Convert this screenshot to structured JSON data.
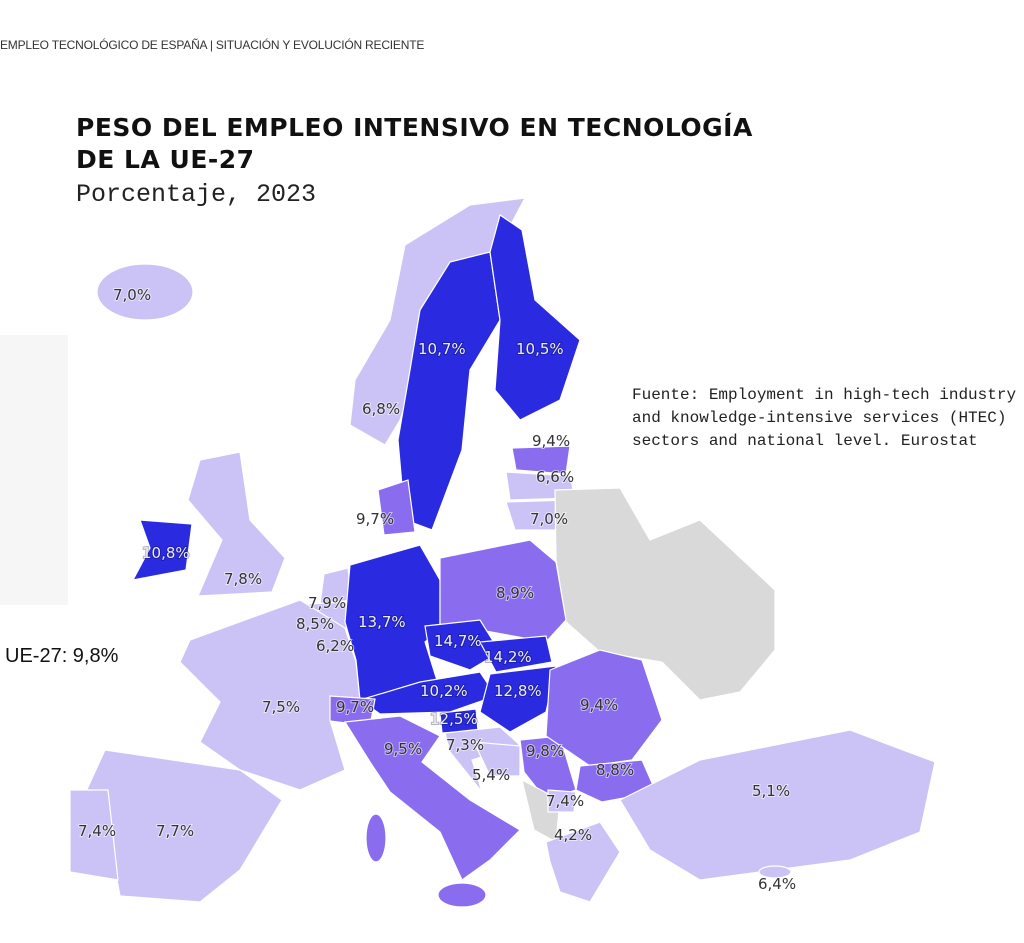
{
  "header": "EMPLEO TECNOLÓGICO DE ESPAÑA |  SITUACIÓN Y EVOLUCIÓN RECIENTE",
  "title_line1": "PESO DEL EMPLEO INTENSIVO EN TECNOLOGÍA",
  "title_line2": "DE LA UE-27",
  "subtitle": "Porcentaje, 2023",
  "average": "UE-27: 9,8%",
  "source": "Fuente: Employment in high-tech industry and knowledge-intensive services (HTEC) sectors and national level. Eurostat",
  "colors": {
    "high": "#2a2ae0",
    "mid": "#8a6cef",
    "low": "#cbc3f6",
    "nodata": "#d9d9d9"
  },
  "chart_data": {
    "type": "choropleth",
    "title": "PESO DEL EMPLEO INTENSIVO EN TECNOLOGÍA DE LA UE-27",
    "subtitle": "Porcentaje, 2023",
    "unit": "%",
    "regions": [
      {
        "code": "IS",
        "value": "7,0%"
      },
      {
        "code": "NO",
        "value": "6,8%"
      },
      {
        "code": "SE",
        "value": "10,7%"
      },
      {
        "code": "FI",
        "value": "10,5%"
      },
      {
        "code": "EE",
        "value": "9,4%"
      },
      {
        "code": "LV",
        "value": "6,6%"
      },
      {
        "code": "LT",
        "value": "7,0%"
      },
      {
        "code": "DK",
        "value": "9,7%"
      },
      {
        "code": "IE",
        "value": "10,8%"
      },
      {
        "code": "UK",
        "value": "7,8%"
      },
      {
        "code": "NL",
        "value": "7,9%"
      },
      {
        "code": "BE",
        "value": "8,5%"
      },
      {
        "code": "LU",
        "value": "6,2%"
      },
      {
        "code": "DE",
        "value": "13,7%"
      },
      {
        "code": "PL",
        "value": "8,9%"
      },
      {
        "code": "CZ",
        "value": "14,7%"
      },
      {
        "code": "SK",
        "value": "14,2%"
      },
      {
        "code": "AT",
        "value": "10,2%"
      },
      {
        "code": "HU",
        "value": "12,8%"
      },
      {
        "code": "SI",
        "value": "12,5%"
      },
      {
        "code": "HR",
        "value": "7,3%"
      },
      {
        "code": "FR",
        "value": "7,5%"
      },
      {
        "code": "CH",
        "value": "9,7%"
      },
      {
        "code": "IT",
        "value": "9,5%"
      },
      {
        "code": "BA",
        "value": "5,4%"
      },
      {
        "code": "RS",
        "value": "9,8%"
      },
      {
        "code": "RO",
        "value": "9,4%"
      },
      {
        "code": "BG",
        "value": "8,8%"
      },
      {
        "code": "MK",
        "value": "7,4%"
      },
      {
        "code": "GR",
        "value": "4,2%"
      },
      {
        "code": "TR",
        "value": "5,1%"
      },
      {
        "code": "CY",
        "value": "6,4%"
      },
      {
        "code": "PT",
        "value": "7,4%"
      },
      {
        "code": "ES",
        "value": "7,7%"
      }
    ]
  }
}
